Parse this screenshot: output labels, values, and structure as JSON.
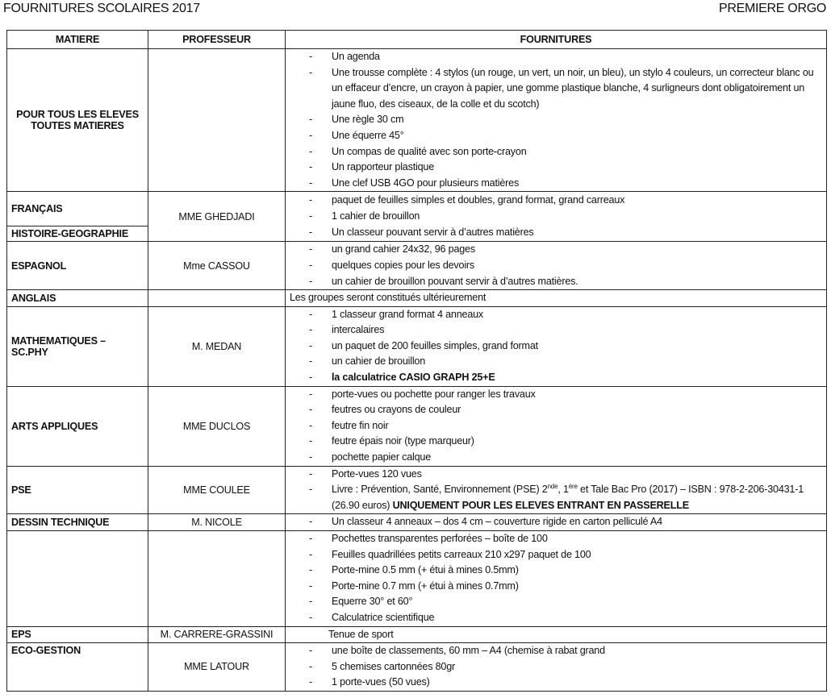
{
  "header": {
    "title": "FOURNITURES SCOLAIRES 2017",
    "class": "PREMIERE ORGO"
  },
  "columns": [
    "MATIERE",
    "PROFESSEUR",
    "FOURNITURES"
  ],
  "rows": [
    {
      "subjects": [
        "POUR TOUS LES ELEVES TOUTES MATIERES"
      ],
      "center": true,
      "professeur": "",
      "items": [
        [
          {
            "t": "Un agenda"
          }
        ],
        [
          {
            "t": "Une trousse complète : 4 stylos (un rouge, un vert, un noir, un bleu), un stylo 4 couleurs, un correcteur blanc ou un effaceur d’encre, un crayon à papier, une gomme plastique blanche, 4 surligneurs dont obligatoirement un jaune fluo, des ciseaux, de la colle et du scotch)"
          }
        ],
        [
          {
            "t": "Une règle 30 cm"
          }
        ],
        [
          {
            "t": "Une équerre 45°"
          }
        ],
        [
          {
            "t": "Un compas de qualité avec son porte-crayon"
          }
        ],
        [
          {
            "t": "Un rapporteur plastique"
          }
        ],
        [
          {
            "t": "Une clef USB 4GO pour plusieurs matières"
          }
        ]
      ]
    },
    {
      "subjects": [
        "FRANÇAIS",
        "HISTOIRE-GEOGRAPHIE"
      ],
      "professeur": "MME GHEDJADI",
      "items": [
        [
          {
            "t": "paquet de feuilles simples et doubles, grand format, grand carreaux"
          }
        ],
        [
          {
            "t": "1 cahier de brouillon"
          }
        ],
        [
          {
            "t": "Un classeur pouvant servir à d’autres matières"
          }
        ]
      ]
    },
    {
      "subjects": [
        "ESPAGNOL"
      ],
      "professeur": "Mme CASSOU",
      "items": [
        [
          {
            "t": "un grand cahier 24x32, 96 pages"
          }
        ],
        [
          {
            "t": "quelques copies pour les devoirs"
          }
        ],
        [
          {
            "t": "un cahier de brouillon pouvant servir à d’autres matières."
          }
        ]
      ]
    },
    {
      "subjects": [
        "ANGLAIS"
      ],
      "professeur": "",
      "note": "Les groupes seront constitués ultérieurement"
    },
    {
      "subjects": [
        "MATHEMATIQUES – SC.PHY"
      ],
      "professeur": "M. MEDAN",
      "items": [
        [
          {
            "t": "1  classeur grand format 4 anneaux"
          }
        ],
        [
          {
            "t": "intercalaires"
          }
        ],
        [
          {
            "t": "un paquet de 200 feuilles simples, grand format"
          }
        ],
        [
          {
            "t": "un cahier de brouillon"
          }
        ],
        [
          {
            "t": "la calculatrice  CASIO GRAPH 25+E",
            "s": "b"
          }
        ]
      ]
    },
    {
      "subjects": [
        "ARTS APPLIQUES"
      ],
      "professeur": "MME DUCLOS",
      "items": [
        [
          {
            "t": "porte-vues ou pochette pour ranger les travaux"
          }
        ],
        [
          {
            "t": "feutres ou crayons de couleur"
          }
        ],
        [
          {
            "t": "feutre fin noir"
          }
        ],
        [
          {
            "t": "feutre épais noir (type marqueur)"
          }
        ],
        [
          {
            "t": "pochette papier calque"
          }
        ]
      ]
    },
    {
      "subjects": [
        "PSE"
      ],
      "professeur": "MME COULEE",
      "items": [
        [
          {
            "t": "Porte-vues 120 vues"
          }
        ],
        [
          {
            "t": "Livre : Prévention, Santé, Environnement (PSE) 2"
          },
          {
            "t": "nde",
            "s": "sup"
          },
          {
            "t": ", 1"
          },
          {
            "t": "ère",
            "s": "sup"
          },
          {
            "t": " et Tale Bac Pro (2017) – ISBN : 978-2-206-30431-1 (26.90 euros) "
          },
          {
            "t": "UNIQUEMENT POUR LES ELEVES ENTRANT EN PASSERELLE",
            "s": "b"
          }
        ]
      ]
    },
    {
      "subjects": [
        "DESSIN TECHNIQUE"
      ],
      "professeur": "M. NICOLE",
      "items": [
        [
          {
            "t": "Un classeur 4 anneaux – dos 4 cm – couverture rigide en carton pelliculé A4"
          }
        ]
      ]
    },
    {
      "subjects": [
        ""
      ],
      "professeur": "",
      "items": [
        [
          {
            "t": "Pochettes transparentes perforées – boîte de 100"
          }
        ],
        [
          {
            "t": "Feuilles quadrillées petits carreaux 210 x297 paquet de 100"
          }
        ],
        [
          {
            "t": "Porte-mine 0.5 mm (+ étui à mines 0.5mm)"
          }
        ],
        [
          {
            "t": "Porte-mine 0.7 mm (+ étui à mines 0.7mm)"
          }
        ],
        [
          {
            "t": "Equerre 30° et 60°"
          }
        ],
        [
          {
            "t": "Calculatrice scientifique"
          }
        ]
      ]
    },
    {
      "subjects": [
        "EPS"
      ],
      "professeur": "M. CARRERE-GRASSINI",
      "note": "Tenue de sport",
      "note_indent": true
    },
    {
      "subjects": [
        "ECO-GESTION"
      ],
      "top": true,
      "professeur": "MME LATOUR",
      "items": [
        [
          {
            "t": "une boîte de classements, 60 mm – A4 (chemise à rabat grand"
          }
        ],
        [
          {
            "t": "5 chemises cartonnées 80gr"
          }
        ],
        [
          {
            "t": "1 porte-vues (50 vues)"
          }
        ]
      ]
    }
  ]
}
